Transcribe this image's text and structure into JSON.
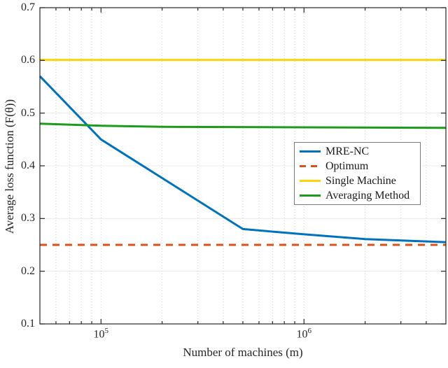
{
  "figure": {
    "background": "#ffffff",
    "axis_color": "#262626",
    "grid_horizontal_color": "#e8e8e8",
    "grid_vertical_color": "#cfcfcf"
  },
  "chart_data": {
    "type": "line",
    "title": "",
    "xlabel": "Number of machines (m)",
    "ylabel": "Average loss function (F(θ))",
    "x_scale": "log",
    "xlim": [
      50000,
      5000000
    ],
    "ylim": [
      0.1,
      0.7
    ],
    "y_ticks": [
      0.1,
      0.2,
      0.3,
      0.4,
      0.5,
      0.6,
      0.7
    ],
    "x_major_ticks": [
      100000,
      1000000
    ],
    "grid": true,
    "legend_position": "right-center",
    "series": [
      {
        "name": "MRE-NC",
        "color": "#0072bd",
        "style": "solid",
        "points": [
          [
            50000,
            0.57
          ],
          [
            100000,
            0.45
          ],
          [
            500000,
            0.28
          ],
          [
            1000000,
            0.27
          ],
          [
            2000000,
            0.261
          ],
          [
            5000000,
            0.255
          ]
        ]
      },
      {
        "name": "Optimum",
        "color": "#d95319",
        "style": "dashed",
        "points": [
          [
            50000,
            0.25
          ],
          [
            5000000,
            0.25
          ]
        ]
      },
      {
        "name": "Single Machine",
        "color": "#ffd30a",
        "style": "solid",
        "points": [
          [
            50000,
            0.601
          ],
          [
            5000000,
            0.601
          ]
        ]
      },
      {
        "name": "Averaging Method",
        "color": "#1c9b1c",
        "style": "solid",
        "points": [
          [
            50000,
            0.48
          ],
          [
            100000,
            0.476
          ],
          [
            200000,
            0.474
          ],
          [
            500000,
            0.4735
          ],
          [
            1000000,
            0.473
          ],
          [
            5000000,
            0.472
          ]
        ]
      }
    ]
  }
}
